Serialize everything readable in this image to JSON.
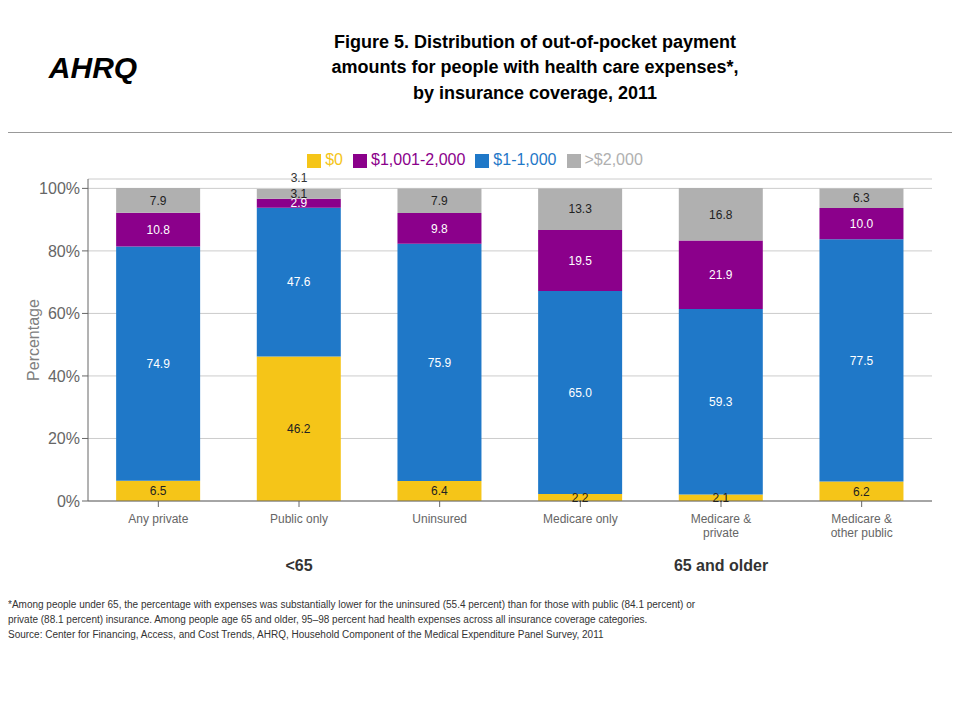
{
  "chart_data": {
    "type": "bar",
    "stacked": true,
    "title": "Figure 5. Distribution of out-of-pocket payment\namounts for people with health care expenses*,\nby insurance coverage, 2011",
    "ylabel": "Percentage",
    "categories": [
      "Any private",
      "Public only",
      "Uninsured",
      "Medicare only",
      "Medicare &\nprivate",
      "Medicare &\nother public"
    ],
    "series": [
      {
        "name": "$0",
        "color": "#F5C518",
        "values": [
          6.5,
          46.2,
          6.4,
          2.2,
          2.1,
          6.2
        ],
        "value_labels": [
          "6.5",
          "46.2",
          "6.4",
          "2.2",
          "2.1",
          "6.2"
        ]
      },
      {
        "name": "$1-1,000",
        "color": "#1F78C8",
        "values": [
          74.9,
          47.6,
          75.9,
          65.0,
          59.3,
          77.5
        ],
        "value_labels": [
          "74.9",
          "47.6",
          "75.9",
          "65.0",
          "59.3",
          "77.5"
        ]
      },
      {
        "name": "$1,001-2,000",
        "color": "#8B008B",
        "values": [
          10.8,
          2.9,
          9.8,
          19.5,
          21.9,
          10.0
        ],
        "value_labels": [
          "10.8",
          "2.9",
          "9.8",
          "19.5",
          "21.9",
          "10.0"
        ]
      },
      {
        "name": ">$2,000",
        "color": "#B0B0B0",
        "values": [
          7.9,
          3.1,
          7.9,
          13.3,
          16.8,
          6.3
        ],
        "value_labels": [
          "7.9",
          "3.1",
          "7.9",
          "13.3",
          "16.8",
          "6.3"
        ]
      }
    ],
    "ylim": [
      0,
      103
    ],
    "yticks": [
      {
        "value": 0,
        "label": "0%"
      },
      {
        "value": 20,
        "label": "20%"
      },
      {
        "value": 40,
        "label": "40%"
      },
      {
        "value": 60,
        "label": "60%"
      },
      {
        "value": 80,
        "label": "80%"
      },
      {
        "value": 100,
        "label": "100%"
      }
    ],
    "grid": true,
    "legend": "top",
    "data_labels": true,
    "annotations": [
      {
        "text": "3.1",
        "x": "Public only",
        "y": 100.5
      },
      {
        "text": "<65",
        "x": "Public only"
      },
      {
        "text": "65 and older",
        "x": "Medicare &\nprivate"
      }
    ],
    "footnotes": [
      "*Among people under 65, the percentage with expenses was substantially lower for the uninsured (55.4 percent) than for those with public (84.1 percent) or",
      "private (88.1 percent) insurance. Among people age 65 and older, 95–98 percent had health expenses across all insurance coverage categories.",
      "Source: Center for Financing, Access, and Cost Trends, AHRQ, Household Component of the Medical Expenditure Panel Survey,  2011"
    ],
    "logo_text": "AHRQ"
  }
}
